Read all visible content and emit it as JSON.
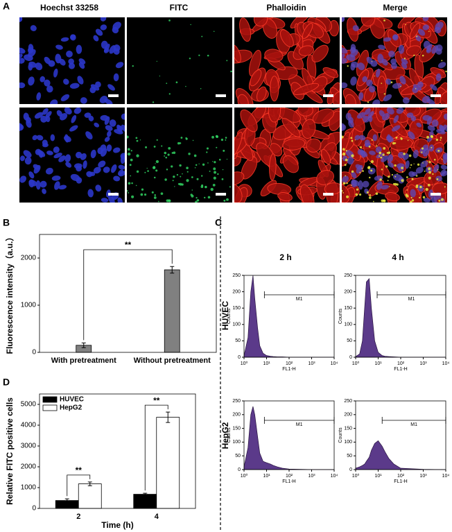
{
  "figure": {
    "panel_labels": [
      "A",
      "B",
      "C",
      "D"
    ],
    "panel_a_columns": [
      "Hoechst 33258",
      "FITC",
      "Phalloidin",
      "Merge"
    ],
    "panel_c_columns": [
      "2 h",
      "4 h"
    ],
    "panel_c_rows": [
      "HUVEC",
      "HepG2"
    ]
  },
  "chart_data": [
    {
      "type": "bar",
      "ylabel": "Fluorescence intensity（a.u.）",
      "categories": [
        "With pretreatment",
        "Without pretreatment"
      ],
      "values": [
        150,
        1750
      ],
      "errors": [
        50,
        70
      ],
      "color": "#808080",
      "ylim": [
        0,
        2500
      ],
      "yticks": [
        0,
        1000,
        2000
      ],
      "annotations": [
        "**"
      ]
    },
    {
      "type": "area",
      "ylabel": "Counts",
      "xlabel": "FL1-H",
      "xlog": true,
      "color": "#5b3a8a",
      "x": [
        1,
        1.5,
        2,
        2.5,
        3,
        4,
        5,
        7,
        10,
        15,
        20,
        30,
        50,
        100,
        1000,
        10000
      ],
      "values": [
        5,
        60,
        200,
        250,
        180,
        90,
        35,
        12,
        5,
        3,
        2,
        1,
        1,
        0,
        0,
        0
      ],
      "gate": [
        8,
        10000
      ],
      "gate_label": "M1",
      "xlim": [
        1,
        10000
      ],
      "ylim": [
        0,
        250
      ],
      "xticks": [
        {
          "value": 1,
          "label": "10⁰"
        },
        {
          "value": 10,
          "label": "10¹"
        },
        {
          "value": 100,
          "label": "10²"
        },
        {
          "value": 1000,
          "label": "10³"
        },
        {
          "value": 10000,
          "label": "10⁴"
        }
      ],
      "yticks": [
        0,
        50,
        100,
        150,
        200,
        250
      ]
    },
    {
      "type": "area",
      "ylabel": "Counts",
      "xlabel": "FL1-H",
      "xlog": true,
      "color": "#5b3a8a",
      "x": [
        1,
        1.5,
        2,
        2.5,
        3,
        4,
        5,
        7,
        10,
        15,
        20,
        30,
        50,
        100,
        1000,
        10000
      ],
      "values": [
        2,
        10,
        50,
        150,
        230,
        240,
        150,
        50,
        15,
        5,
        3,
        2,
        1,
        0,
        0,
        0
      ],
      "gate": [
        9,
        10000
      ],
      "gate_label": "M1",
      "xlim": [
        1,
        10000
      ],
      "ylim": [
        0,
        250
      ],
      "xticks": [
        {
          "value": 1,
          "label": "10⁰"
        },
        {
          "value": 10,
          "label": "10¹"
        },
        {
          "value": 100,
          "label": "10²"
        },
        {
          "value": 1000,
          "label": "10³"
        },
        {
          "value": 10000,
          "label": "10⁴"
        }
      ],
      "yticks": [
        0,
        50,
        100,
        150,
        200,
        250
      ]
    },
    {
      "type": "area",
      "ylabel": "Counts",
      "xlabel": "FL1-H",
      "xlog": true,
      "color": "#5b3a8a",
      "x": [
        1,
        1.5,
        2,
        2.5,
        3,
        4,
        5,
        7,
        10,
        15,
        20,
        30,
        50,
        100,
        1000,
        10000
      ],
      "values": [
        10,
        80,
        200,
        230,
        200,
        120,
        60,
        30,
        25,
        20,
        15,
        10,
        5,
        2,
        0,
        0
      ],
      "gate": [
        8,
        10000
      ],
      "gate_label": "M1",
      "xlim": [
        1,
        10000
      ],
      "ylim": [
        0,
        250
      ],
      "xticks": [
        {
          "value": 1,
          "label": "10⁰"
        },
        {
          "value": 10,
          "label": "10¹"
        },
        {
          "value": 100,
          "label": "10²"
        },
        {
          "value": 1000,
          "label": "10³"
        },
        {
          "value": 10000,
          "label": "10⁴"
        }
      ],
      "yticks": [
        0,
        50,
        100,
        150,
        200,
        250
      ]
    },
    {
      "type": "area",
      "ylabel": "Counts",
      "xlabel": "FL1-H",
      "xlog": true,
      "color": "#5b3a8a",
      "x": [
        1,
        1.5,
        2,
        2.5,
        3,
        4,
        5,
        7,
        10,
        15,
        20,
        30,
        50,
        100,
        1000,
        10000
      ],
      "values": [
        5,
        10,
        15,
        20,
        30,
        45,
        70,
        95,
        105,
        85,
        65,
        40,
        20,
        5,
        1,
        0
      ],
      "gate": [
        15,
        10000
      ],
      "gate_label": "M1",
      "xlim": [
        1,
        10000
      ],
      "ylim": [
        0,
        250
      ],
      "xticks": [
        {
          "value": 1,
          "label": "10⁰"
        },
        {
          "value": 10,
          "label": "10¹"
        },
        {
          "value": 100,
          "label": "10²"
        },
        {
          "value": 1000,
          "label": "10³"
        },
        {
          "value": 10000,
          "label": "10⁴"
        }
      ],
      "yticks": [
        0,
        50,
        100,
        150,
        200,
        250
      ]
    },
    {
      "type": "bar",
      "ylabel": "Relative FITC positive cells",
      "xlabel": "Time (h)",
      "categories": [
        "2",
        "4"
      ],
      "series": [
        {
          "name": "HUVEC",
          "color": "#000000",
          "values": [
            380,
            680
          ],
          "errors": [
            80,
            50
          ]
        },
        {
          "name": "HepG2",
          "color": "#ffffff",
          "values": [
            1180,
            4380
          ],
          "errors": [
            90,
            250
          ]
        }
      ],
      "legend": "upper left",
      "ylim": [
        0,
        5500
      ],
      "yticks": [
        0,
        1000,
        2000,
        3000,
        4000,
        5000
      ],
      "annotations": [
        "**",
        "**"
      ]
    }
  ]
}
